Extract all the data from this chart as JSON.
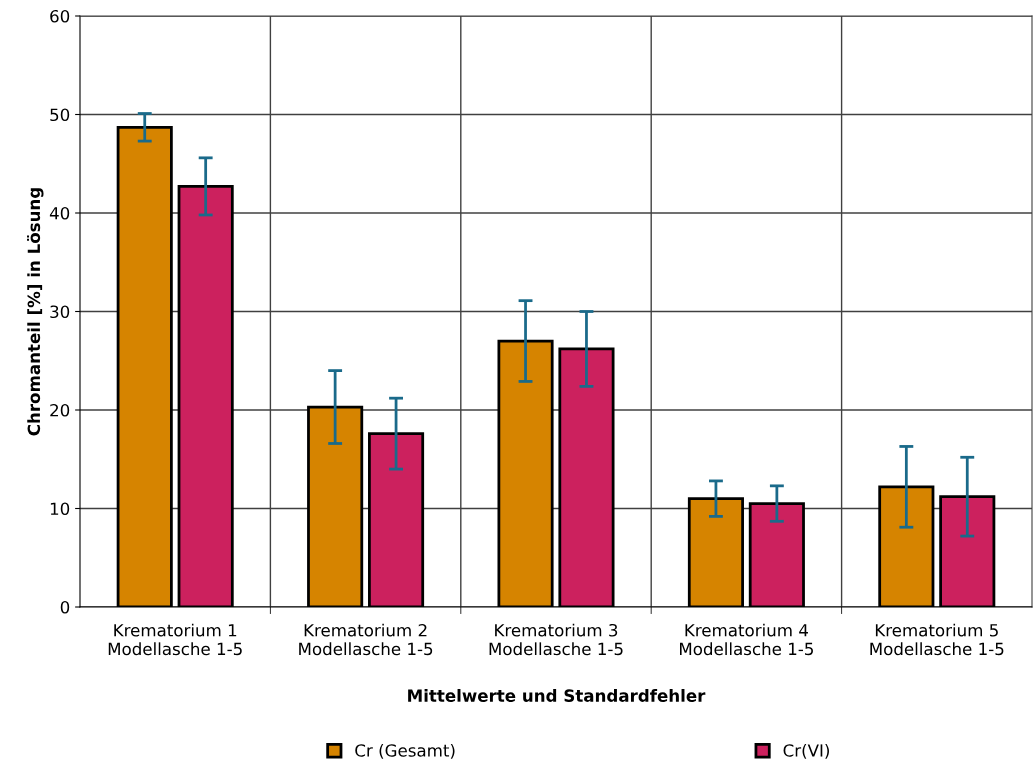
{
  "chart_data": {
    "type": "bar",
    "xlabel": "Mittelwerte und Standardfehler",
    "ylabel": "Chromanteil [%] in Lösung",
    "categories": [
      "Krematorium 1\nModellasche 1-5",
      "Krematorium 2\nModellasche 1-5",
      "Krematorium 3\nModellasche 1-5",
      "Krematorium 4\nModellasche 1-5",
      "Krematorium 5\nModellasche 1-5"
    ],
    "series": [
      {
        "name": "Cr (Gesamt)",
        "color": "#d68400",
        "values": [
          48.7,
          20.3,
          27.0,
          11.0,
          12.2
        ],
        "errors": [
          1.4,
          3.7,
          4.1,
          1.8,
          4.1
        ]
      },
      {
        "name": "Cr(VI)",
        "color": "#cc215e",
        "values": [
          42.7,
          17.6,
          26.2,
          10.5,
          11.2
        ],
        "errors": [
          2.9,
          3.6,
          3.8,
          1.8,
          4.0
        ]
      }
    ],
    "ylim": [
      0,
      60
    ],
    "yticks": [
      0,
      10,
      20,
      30,
      40,
      50,
      60
    ],
    "grid": true,
    "legend": "bottom"
  }
}
